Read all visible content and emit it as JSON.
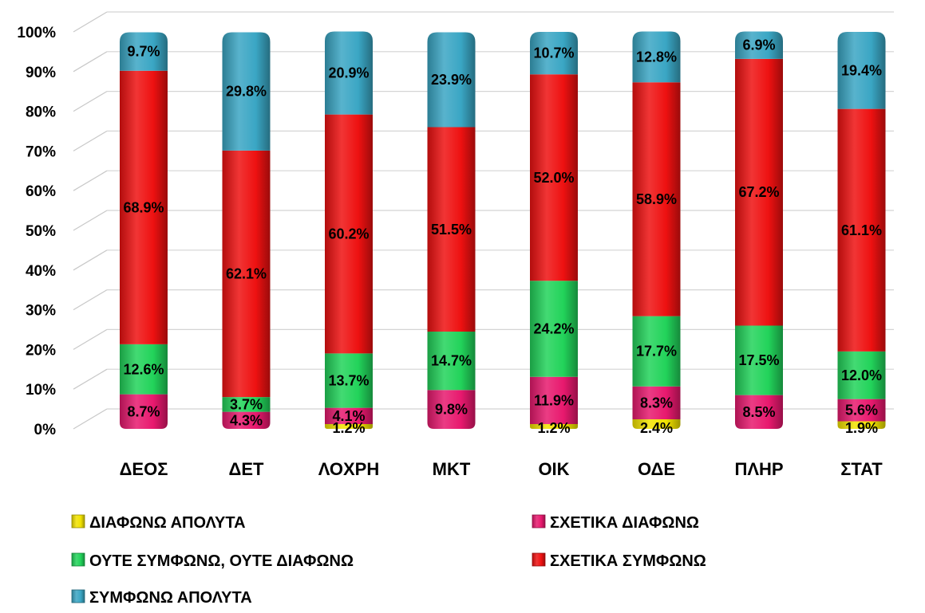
{
  "chart_data": {
    "type": "bar",
    "stacked": true,
    "percent_stacked": true,
    "categories": [
      "ΔΕΟΣ",
      "ΔΕΤ",
      "ΛΟΧΡΗ",
      "ΜΚΤ",
      "ΟΙΚ",
      "ΟΔΕ",
      "ΠΛΗΡ",
      "ΣΤΑΤ"
    ],
    "ylim": [
      0,
      100
    ],
    "yticks": [
      "0%",
      "10%",
      "20%",
      "30%",
      "40%",
      "50%",
      "60%",
      "70%",
      "80%",
      "90%",
      "100%"
    ],
    "grid": true,
    "legend_position": "bottom",
    "series": [
      {
        "name": "ΔΙΑΦΩΝΩ ΑΠΟΛΥΤΑ",
        "color": "#f2e300",
        "values": [
          0,
          0,
          1.2,
          0,
          1.2,
          2.4,
          0,
          1.9
        ],
        "labels": [
          "",
          "",
          "1.2%",
          "",
          "1.2%",
          "2.4%",
          "",
          "1.9%"
        ]
      },
      {
        "name": "ΣΧΕΤΙΚΑ ΔΙΑΦΩΝΩ",
        "color": "#e8196e",
        "values": [
          8.7,
          4.3,
          4.1,
          9.8,
          11.9,
          8.3,
          8.5,
          5.6
        ],
        "labels": [
          "8.7%",
          "4.3%",
          "4.1%",
          "9.8%",
          "11.9%",
          "8.3%",
          "8.5%",
          "5.6%"
        ]
      },
      {
        "name": "ΟΥΤΕ ΣΥΜΦΩΝΩ, ΟΥΤΕ ΔΙΑΦΩΝΩ",
        "color": "#22d35a",
        "values": [
          12.6,
          3.7,
          13.7,
          14.7,
          24.2,
          17.7,
          17.5,
          12.0
        ],
        "labels": [
          "12.6%",
          "3.7%",
          "13.7%",
          "14.7%",
          "24.2%",
          "17.7%",
          "17.5%",
          "12.0%"
        ]
      },
      {
        "name": "ΣΧΕΤΙΚΑ ΣΥΜΦΩΝΩ",
        "color": "#ee1111",
        "values": [
          68.9,
          62.1,
          60.2,
          51.5,
          52.0,
          58.9,
          67.2,
          61.1
        ],
        "labels": [
          "68.9%",
          "62.1%",
          "60.2%",
          "51.5%",
          "52.0%",
          "58.9%",
          "67.2%",
          "61.1%"
        ]
      },
      {
        "name": "ΣΥΜΦΩΝΩ ΑΠΟΛΥΤΑ",
        "color": "#3aa6c4",
        "values": [
          9.7,
          29.8,
          20.9,
          23.9,
          10.7,
          12.8,
          6.9,
          19.4
        ],
        "labels": [
          "9.7%",
          "29.8%",
          "20.9%",
          "23.9%",
          "10.7%",
          "12.8%",
          "6.9%",
          "19.4%"
        ]
      }
    ]
  }
}
